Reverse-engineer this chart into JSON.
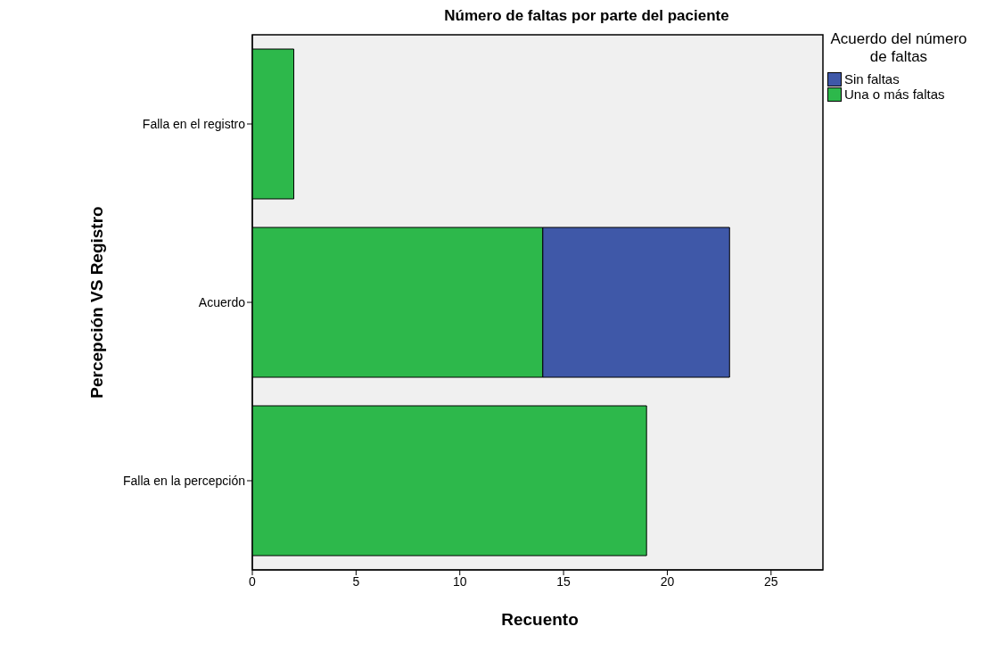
{
  "chart_data": {
    "type": "bar",
    "orientation": "horizontal",
    "stacked": true,
    "title": "Número de faltas por parte del paciente",
    "xlabel": "Recuento",
    "ylabel": "Percepción VS Registro",
    "legend_title": "Acuerdo del número de faltas",
    "legend": "right",
    "grid": false,
    "categories": [
      "Falla en el registro",
      "Acuerdo",
      "Falla en la percepción"
    ],
    "series": [
      {
        "name": "Una o más faltas",
        "color": "#2db84b",
        "values": [
          2,
          14,
          19
        ]
      },
      {
        "name": "Sin faltas",
        "color": "#3f58a8",
        "values": [
          null,
          9,
          null
        ]
      }
    ],
    "xlim": [
      0,
      27.5
    ],
    "xticks": [
      0,
      5,
      10,
      15,
      20,
      25
    ]
  }
}
